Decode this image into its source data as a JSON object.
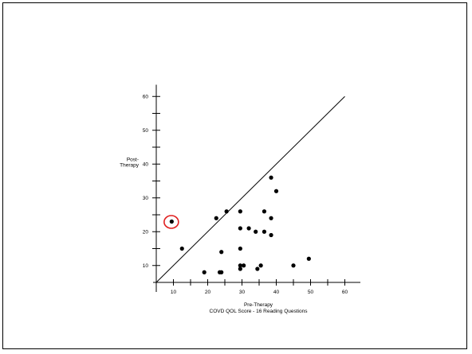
{
  "chart_data": {
    "type": "scatter",
    "xlabel": "Pre-Therapy",
    "subtitle": "COVD QOL Score - 16 Reading Questions",
    "ylabel_lines": [
      "Post-",
      "Therapy"
    ],
    "xlim": [
      5,
      65
    ],
    "ylim": [
      5,
      63
    ],
    "x_ticks": [
      10,
      20,
      30,
      40,
      50,
      60
    ],
    "y_ticks": [
      10,
      20,
      30,
      40,
      50,
      60
    ],
    "reference_line": {
      "from": [
        5,
        5
      ],
      "to": [
        60,
        60
      ]
    },
    "points": [
      {
        "x": 9.5,
        "y": 23,
        "highlighted": true
      },
      {
        "x": 12.5,
        "y": 15
      },
      {
        "x": 19,
        "y": 8
      },
      {
        "x": 22.5,
        "y": 24
      },
      {
        "x": 23.5,
        "y": 8
      },
      {
        "x": 24,
        "y": 8
      },
      {
        "x": 24,
        "y": 14
      },
      {
        "x": 25.5,
        "y": 26
      },
      {
        "x": 29.5,
        "y": 26
      },
      {
        "x": 29.5,
        "y": 21
      },
      {
        "x": 29.5,
        "y": 15
      },
      {
        "x": 29.5,
        "y": 10
      },
      {
        "x": 29.5,
        "y": 9
      },
      {
        "x": 30.5,
        "y": 10
      },
      {
        "x": 32,
        "y": 21
      },
      {
        "x": 34,
        "y": 20
      },
      {
        "x": 34.5,
        "y": 9
      },
      {
        "x": 35.5,
        "y": 10
      },
      {
        "x": 36.5,
        "y": 26
      },
      {
        "x": 36.5,
        "y": 20
      },
      {
        "x": 38.5,
        "y": 19
      },
      {
        "x": 38.5,
        "y": 24
      },
      {
        "x": 38.5,
        "y": 36
      },
      {
        "x": 40,
        "y": 32
      },
      {
        "x": 45,
        "y": 10
      },
      {
        "x": 49.5,
        "y": 12
      }
    ],
    "highlight_color": "#e02020"
  }
}
